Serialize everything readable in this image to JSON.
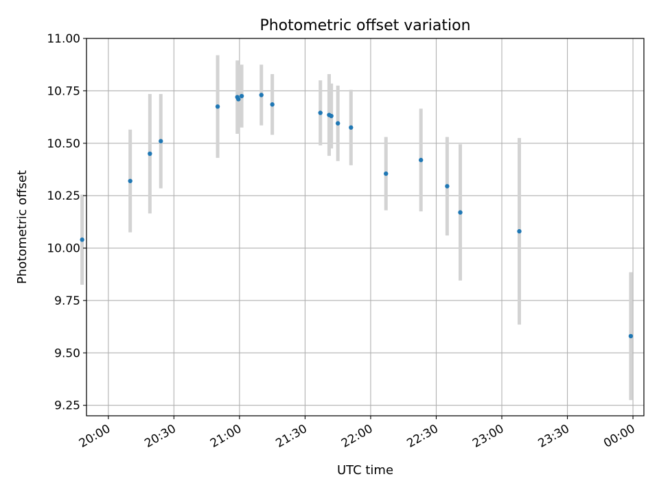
{
  "chart_data": {
    "type": "scatter",
    "title": "Photometric offset variation",
    "xlabel": "UTC time",
    "ylabel": "Photometric offset",
    "grid": true,
    "x_axis": {
      "min": "19:50",
      "max": "00:05",
      "ticks": [
        "20:00",
        "20:30",
        "21:00",
        "21:30",
        "22:00",
        "22:30",
        "23:00",
        "23:30",
        "00:00"
      ]
    },
    "y_axis": {
      "min": 9.2,
      "max": 11.0,
      "ticks": [
        "9.25",
        "9.50",
        "9.75",
        "10.00",
        "10.25",
        "10.50",
        "10.75",
        "11.00"
      ]
    },
    "colors": {
      "points": "#1f77b4",
      "errorbars": "#d3d3d3",
      "grid": "#b0b0b0"
    },
    "series": [
      {
        "points": [
          {
            "x": "19:48",
            "y": 10.04,
            "err": 0.215
          },
          {
            "x": "20:10",
            "y": 10.32,
            "err": 0.245
          },
          {
            "x": "20:19",
            "y": 10.45,
            "err": 0.285
          },
          {
            "x": "20:24",
            "y": 10.51,
            "err": 0.225
          },
          {
            "x": "20:50",
            "y": 10.675,
            "err": 0.245
          },
          {
            "x": "20:59",
            "y": 10.72,
            "err": 0.175
          },
          {
            "x": "20:59.5",
            "y": 10.71,
            "err": 0.165
          },
          {
            "x": "21:01",
            "y": 10.725,
            "err": 0.15
          },
          {
            "x": "21:10",
            "y": 10.73,
            "err": 0.145
          },
          {
            "x": "21:15",
            "y": 10.685,
            "err": 0.145
          },
          {
            "x": "21:37",
            "y": 10.645,
            "err": 0.155
          },
          {
            "x": "21:41",
            "y": 10.635,
            "err": 0.195
          },
          {
            "x": "21:42",
            "y": 10.63,
            "err": 0.155
          },
          {
            "x": "21:45",
            "y": 10.595,
            "err": 0.18
          },
          {
            "x": "21:51",
            "y": 10.575,
            "err": 0.18
          },
          {
            "x": "22:07",
            "y": 10.355,
            "err": 0.175
          },
          {
            "x": "22:23",
            "y": 10.42,
            "err": 0.245
          },
          {
            "x": "22:35",
            "y": 10.295,
            "err": 0.235
          },
          {
            "x": "22:41",
            "y": 10.17,
            "err": 0.325
          },
          {
            "x": "23:08",
            "y": 10.08,
            "err": 0.445
          },
          {
            "x": "23:59",
            "y": 9.58,
            "err": 0.305
          }
        ]
      }
    ]
  }
}
